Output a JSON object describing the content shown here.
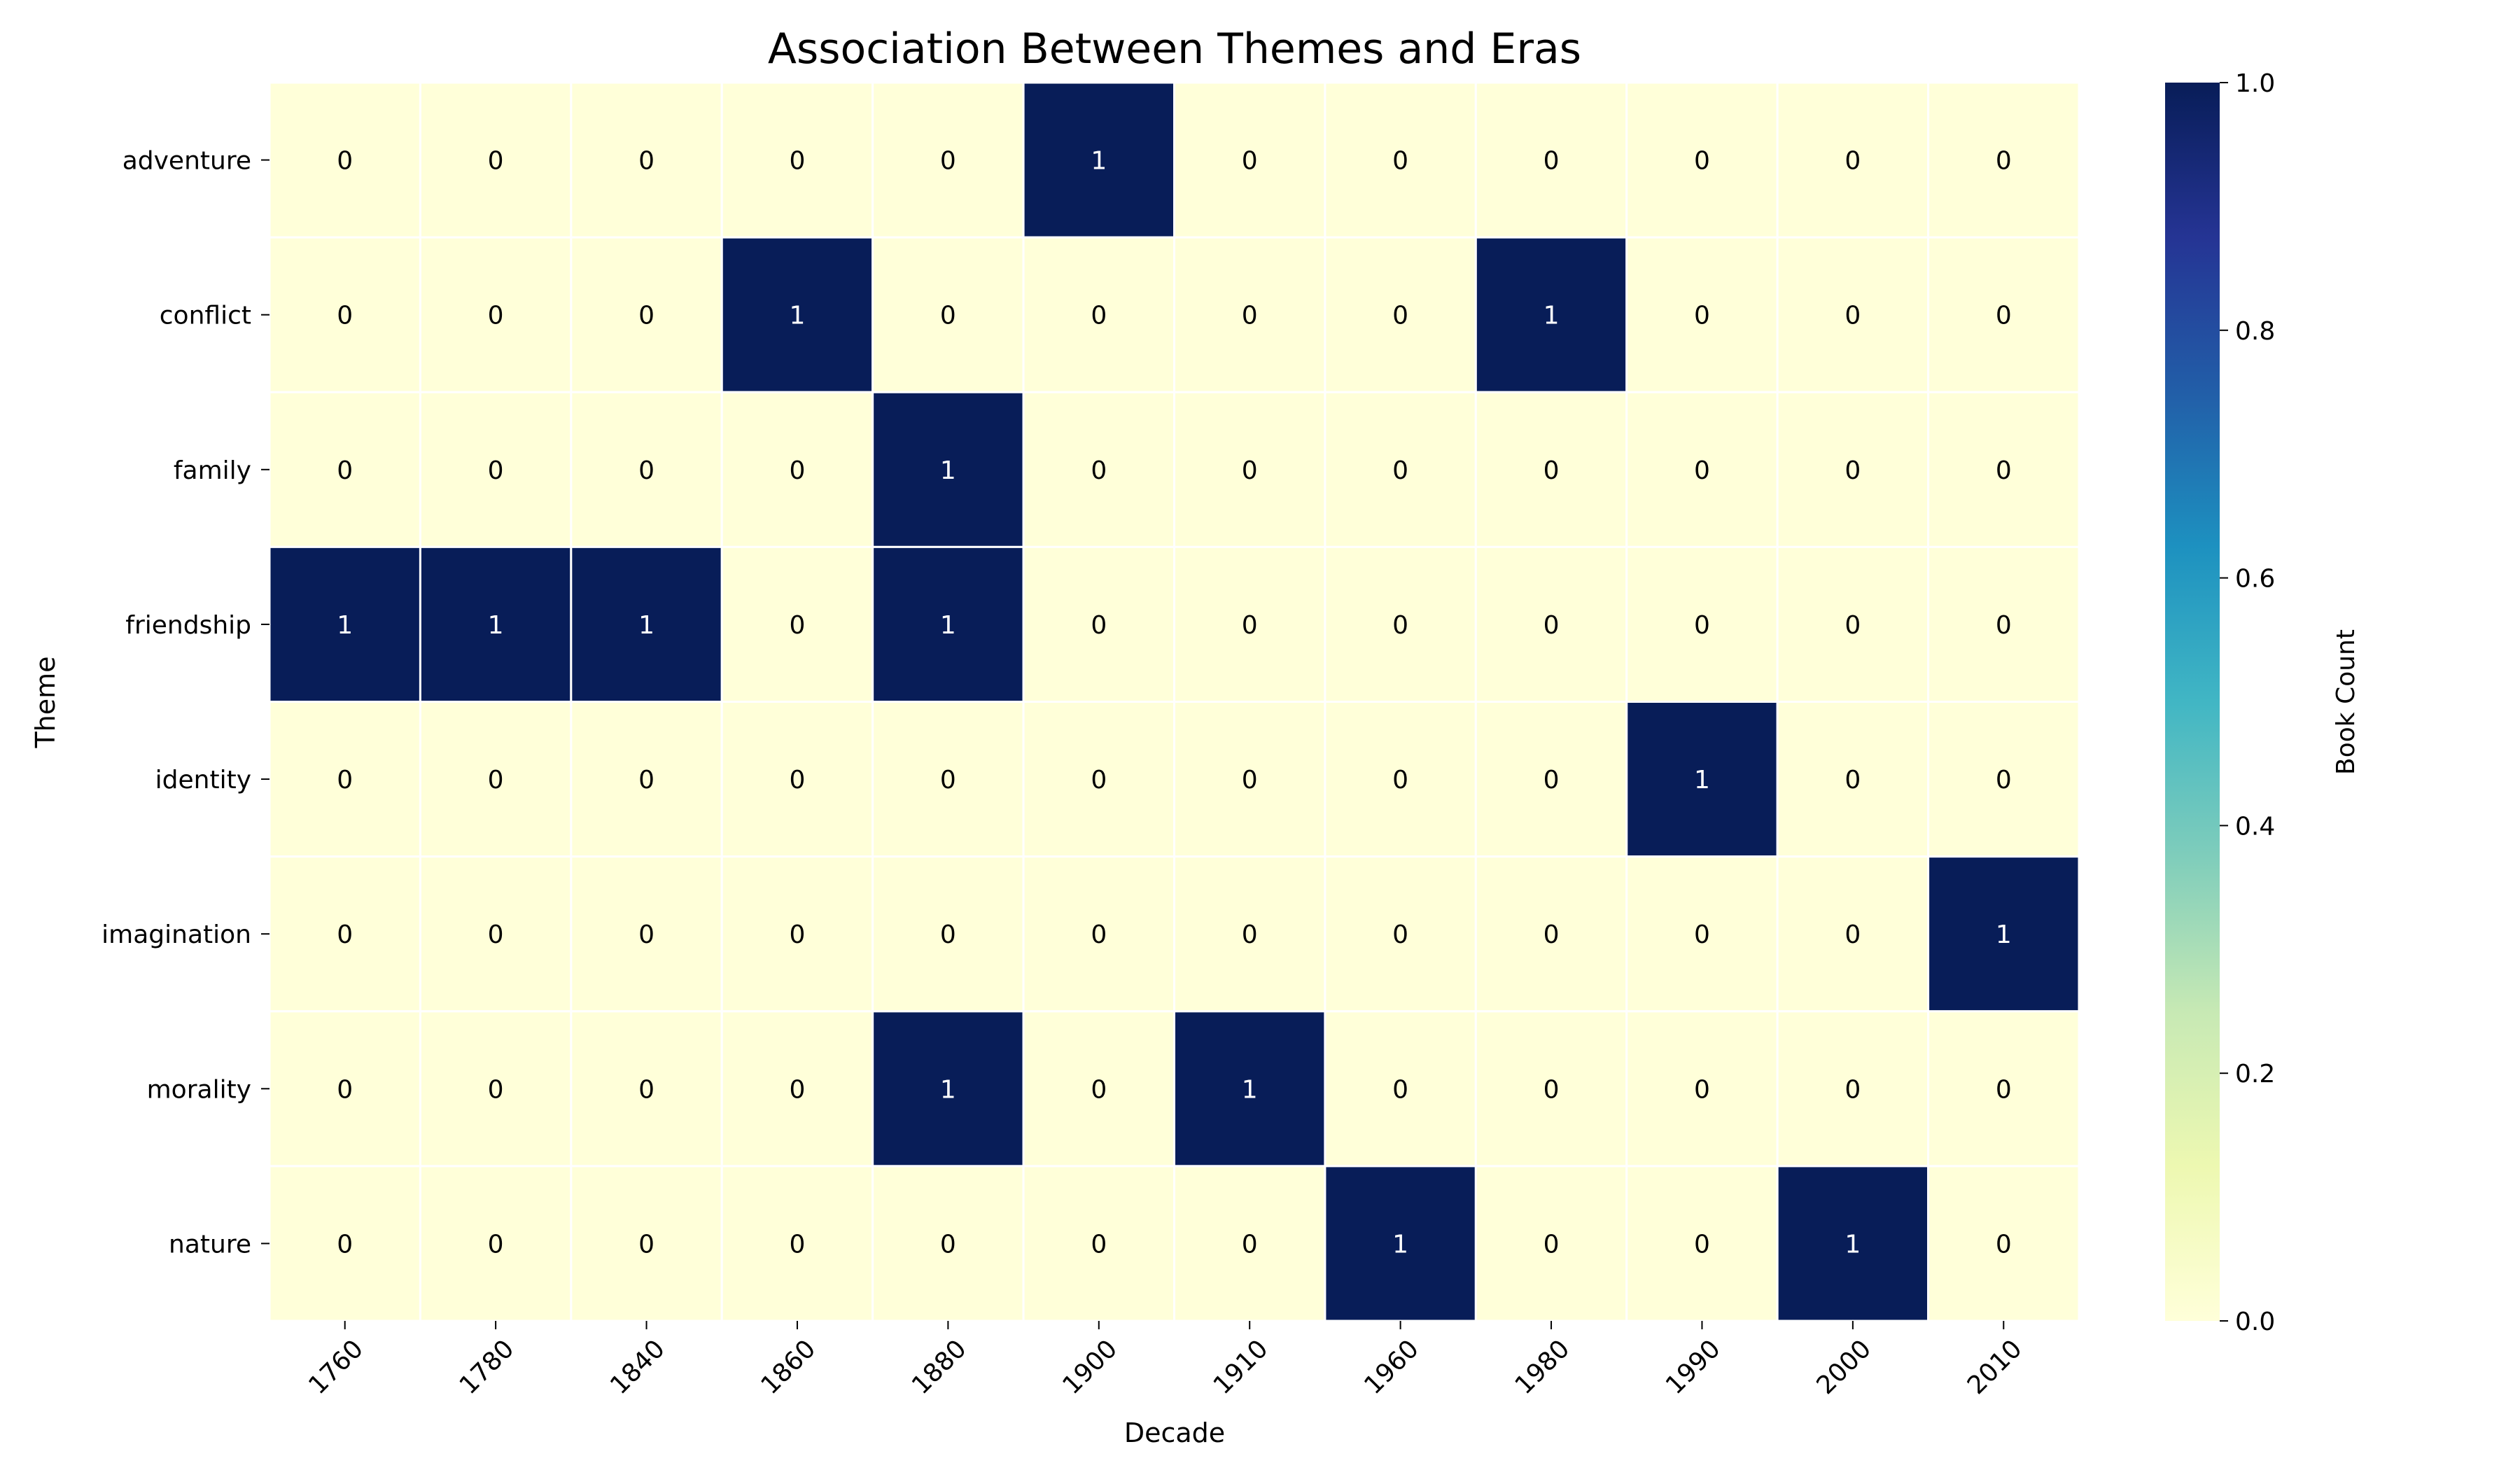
{
  "chart_data": {
    "type": "heatmap",
    "title": "Association Between Themes and Eras",
    "xlabel": "Decade",
    "ylabel": "Theme",
    "x_categories": [
      "1760",
      "1780",
      "1840",
      "1860",
      "1880",
      "1900",
      "1910",
      "1960",
      "1980",
      "1990",
      "2000",
      "2010"
    ],
    "y_categories": [
      "adventure",
      "conflict",
      "family",
      "friendship",
      "identity",
      "imagination",
      "morality",
      "nature"
    ],
    "values": [
      [
        0,
        0,
        0,
        0,
        0,
        1,
        0,
        0,
        0,
        0,
        0,
        0
      ],
      [
        0,
        0,
        0,
        1,
        0,
        0,
        0,
        0,
        1,
        0,
        0,
        0
      ],
      [
        0,
        0,
        0,
        0,
        1,
        0,
        0,
        0,
        0,
        0,
        0,
        0
      ],
      [
        1,
        1,
        1,
        0,
        1,
        0,
        0,
        0,
        0,
        0,
        0,
        0
      ],
      [
        0,
        0,
        0,
        0,
        0,
        0,
        0,
        0,
        0,
        1,
        0,
        0
      ],
      [
        0,
        0,
        0,
        0,
        0,
        0,
        0,
        0,
        0,
        0,
        0,
        1
      ],
      [
        0,
        0,
        0,
        0,
        1,
        0,
        1,
        0,
        0,
        0,
        0,
        0
      ],
      [
        0,
        0,
        0,
        0,
        0,
        0,
        0,
        1,
        0,
        0,
        1,
        0
      ]
    ],
    "colorbar": {
      "label": "Book Count",
      "range": [
        0.0,
        1.0
      ],
      "ticks": [
        "0.0",
        "0.2",
        "0.4",
        "0.6",
        "0.8",
        "1.0"
      ],
      "colormap": "YlGnBu",
      "low_color": "#ffffd9",
      "high_color": "#081d58"
    },
    "annotations": true,
    "grid": false,
    "x_tick_rotation": "45 degrees",
    "legend_placement": "colorbar-right"
  }
}
